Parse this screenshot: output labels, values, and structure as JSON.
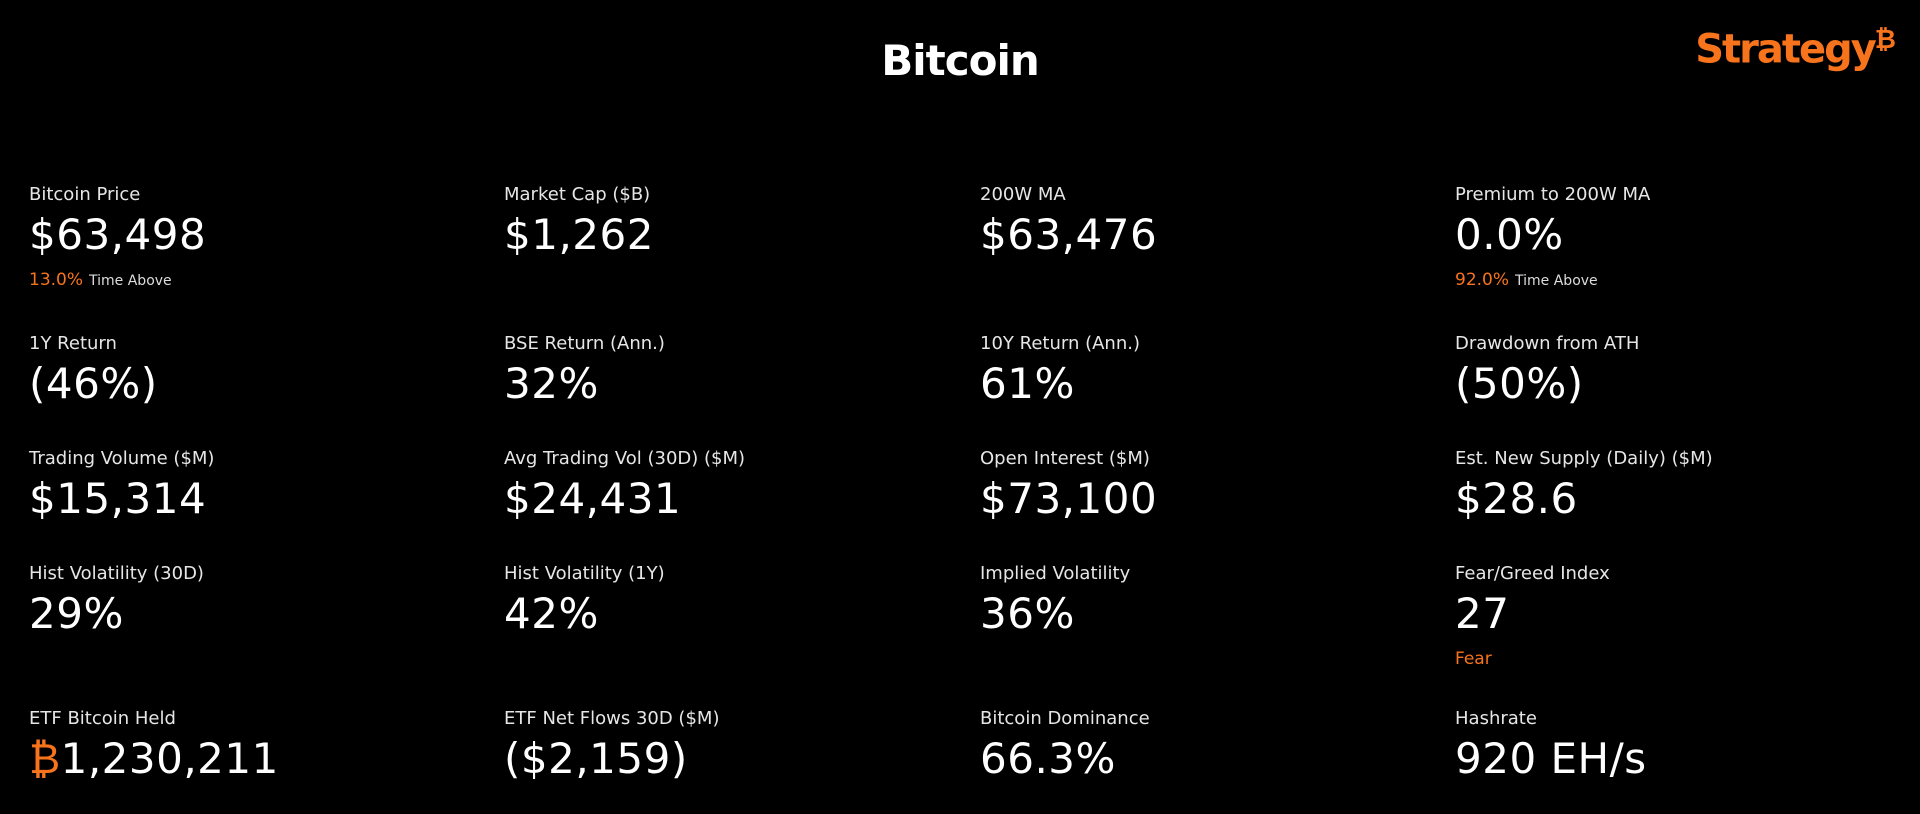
{
  "header": {
    "title": "Bitcoin",
    "logo": "Strategy",
    "logo_mark": "₿"
  },
  "metrics": [
    [
      {
        "label": "Bitcoin Price",
        "value": "$63,498",
        "note": "13.0%",
        "note_label": "Time Above"
      },
      {
        "label": "Market Cap ($B)",
        "value": "$1,262"
      },
      {
        "label": "200W MA",
        "value": "$63,476"
      },
      {
        "label": "Premium to 200W MA",
        "value": "0.0%",
        "note": "92.0%",
        "note_label": "Time Above"
      }
    ],
    [
      {
        "label": "1Y Return",
        "value": "(46%)"
      },
      {
        "label": "BSE Return (Ann.)",
        "value": "32%"
      },
      {
        "label": "10Y Return (Ann.)",
        "value": "61%"
      },
      {
        "label": "Drawdown from ATH",
        "value": "(50%)"
      }
    ],
    [
      {
        "label": "Trading Volume ($M)",
        "value": "$15,314"
      },
      {
        "label": "Avg Trading Vol (30D) ($M)",
        "value": "$24,431"
      },
      {
        "label": "Open Interest ($M)",
        "value": "$73,100"
      },
      {
        "label": "Est. New Supply (Daily) ($M)",
        "value": "$28.6"
      }
    ],
    [
      {
        "label": "Hist Volatility (30D)",
        "value": "29%"
      },
      {
        "label": "Hist Volatility (1Y)",
        "value": "42%"
      },
      {
        "label": "Implied Volatility",
        "value": "36%"
      },
      {
        "label": "Fear/Greed Index",
        "value": "27",
        "note": "Fear"
      }
    ],
    [
      {
        "label": "ETF Bitcoin Held",
        "prefix": "₿",
        "value": "1,230,211"
      },
      {
        "label": "ETF Net Flows 30D ($M)",
        "value": "($2,159)"
      },
      {
        "label": "Bitcoin Dominance",
        "value": "66.3%"
      },
      {
        "label": "Hashrate",
        "value": "920 EH/s"
      }
    ]
  ]
}
